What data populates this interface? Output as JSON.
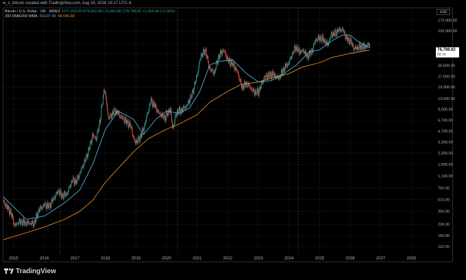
{
  "header": {
    "author_line": "w_s_bitcoin created with TradingView.com, Aug 24, 2026 19:17 UTC-4"
  },
  "legend": {
    "symbol_line": "Bitcoin / U.S. Dollar · 1W · INDEX",
    "ohlc": "O77,253.09  H79,993.99  L76,664.85  C78,788.82  +1,054.49 (+1.36%)",
    "ma_label": "200 DMA/200 WMA",
    "ma_value_1": "69,037.46",
    "ma_value_2": "64,590.68"
  },
  "currency": "USD",
  "price_tag": {
    "value": "78,788.82",
    "time": "8d 1h"
  },
  "footer": {
    "brand": "TradingView"
  },
  "colors": {
    "candle_up": "#26a69a",
    "candle_down": "#ef5350",
    "ma_blue": "#4fb8e8",
    "ma_orange": "#f0901e",
    "grid": "#1a1a1a",
    "divider": "#555555"
  },
  "chart_data": {
    "type": "line",
    "title": "Bitcoin / U.S. Dollar",
    "scale": "log",
    "ylim": [
      90,
      250000
    ],
    "xlim": [
      "2014-09-01",
      "2028-09-01"
    ],
    "y_ticks": [
      "170,000.00",
      "120,000.00",
      "57,000.00",
      "39,500.00",
      "27,500.00",
      "19,500.00",
      "13,500.00",
      "9,500.00",
      "6,700.00",
      "4,700.00",
      "3,300.00",
      "2,300.00",
      "1,600.00",
      "1,100.00",
      "750.00",
      "510.00",
      "350.00",
      "230.00",
      "160.00",
      "112.00"
    ],
    "y_tick_values": [
      170000,
      120000,
      57000,
      39500,
      27500,
      19500,
      13500,
      9500,
      6700,
      4700,
      3300,
      2300,
      1600,
      1100,
      750,
      510,
      350,
      230,
      160,
      112
    ],
    "x_ticks": [
      "2015",
      "2016",
      "2017",
      "2018",
      "2019",
      "2020",
      "2021",
      "2022",
      "2023",
      "2024",
      "2025",
      "2026",
      "2027",
      "2028"
    ],
    "x_tick_dates": [
      "2015-01-01",
      "2016-01-01",
      "2017-01-01",
      "2018-01-01",
      "2019-01-01",
      "2020-01-01",
      "2021-01-01",
      "2022-01-01",
      "2023-01-01",
      "2024-01-01",
      "2025-01-01",
      "2026-01-01",
      "2027-01-01",
      "2028-01-01"
    ],
    "halving_dates": [
      "2016-07-09",
      "2020-05-11",
      "2024-04-20"
    ],
    "last_price": 78788.82,
    "series": [
      {
        "name": "Bitcoin / U.S. Dollar",
        "kind": "candles",
        "x": [
          "2014-09-01",
          "2014-12-01",
          "2015-01-15",
          "2015-03-01",
          "2015-06-01",
          "2015-09-01",
          "2015-11-01",
          "2016-01-01",
          "2016-03-01",
          "2016-06-15",
          "2016-08-01",
          "2016-10-01",
          "2016-12-01",
          "2017-01-15",
          "2017-03-01",
          "2017-05-01",
          "2017-06-15",
          "2017-08-01",
          "2017-09-15",
          "2017-11-01",
          "2017-12-17",
          "2018-01-15",
          "2018-02-06",
          "2018-03-15",
          "2018-05-01",
          "2018-07-01",
          "2018-09-01",
          "2018-11-01",
          "2018-12-15",
          "2019-02-01",
          "2019-04-01",
          "2019-06-26",
          "2019-08-15",
          "2019-10-01",
          "2019-12-15",
          "2020-02-15",
          "2020-03-13",
          "2020-05-01",
          "2020-07-01",
          "2020-09-01",
          "2020-11-01",
          "2021-01-01",
          "2021-02-15",
          "2021-04-14",
          "2021-05-20",
          "2021-07-20",
          "2021-09-07",
          "2021-11-10",
          "2022-01-01",
          "2022-03-01",
          "2022-05-01",
          "2022-06-18",
          "2022-08-15",
          "2022-11-10",
          "2023-01-01",
          "2023-03-15",
          "2023-06-15",
          "2023-09-01",
          "2023-11-01",
          "2024-01-01",
          "2024-03-14",
          "2024-05-01",
          "2024-07-01",
          "2024-08-05",
          "2024-10-01",
          "2024-11-15",
          "2025-01-01",
          "2025-02-15",
          "2025-04-07",
          "2025-05-22",
          "2025-07-01",
          "2025-08-14",
          "2025-10-06",
          "2025-11-20",
          "2026-01-01",
          "2026-02-15",
          "2026-04-01",
          "2026-05-15",
          "2026-06-20",
          "2026-07-15",
          "2026-08-24"
        ],
        "close": [
          480,
          330,
          215,
          250,
          240,
          235,
          370,
          430,
          415,
          680,
          575,
          620,
          960,
          900,
          1200,
          1800,
          2500,
          4100,
          3700,
          7000,
          19000,
          11500,
          7000,
          8000,
          9000,
          7500,
          6500,
          5500,
          3300,
          3500,
          5000,
          12500,
          10500,
          8300,
          7200,
          9800,
          5000,
          8800,
          9200,
          10800,
          15500,
          29000,
          55000,
          63000,
          37000,
          30000,
          50000,
          66000,
          47000,
          41000,
          31000,
          19000,
          22000,
          16500,
          16600,
          27000,
          30000,
          26000,
          35000,
          43000,
          71000,
          62000,
          62500,
          52000,
          62000,
          91000,
          95000,
          92000,
          76000,
          108000,
          108000,
          123000,
          124000,
          92000,
          88000,
          68000,
          70000,
          73000,
          71000,
          74000,
          78788.82
        ]
      },
      {
        "name": "200 DMA",
        "x": [
          "2014-09-01",
          "2015-06-01",
          "2016-01-01",
          "2016-09-01",
          "2017-03-01",
          "2017-08-01",
          "2018-01-01",
          "2018-06-01",
          "2018-12-01",
          "2019-04-01",
          "2019-09-01",
          "2020-01-01",
          "2020-06-01",
          "2020-10-01",
          "2021-02-01",
          "2021-06-01",
          "2021-10-01",
          "2022-03-01",
          "2022-08-01",
          "2023-01-01",
          "2023-06-01",
          "2023-11-01",
          "2024-04-01",
          "2024-09-01",
          "2025-01-01",
          "2025-06-01",
          "2025-10-01",
          "2026-01-01",
          "2026-04-01",
          "2026-08-24"
        ],
        "values": [
          560,
          270,
          300,
          460,
          700,
          1600,
          5000,
          9000,
          6900,
          4200,
          7000,
          9000,
          8300,
          9900,
          17000,
          40000,
          45000,
          47000,
          31000,
          23000,
          24000,
          30000,
          40000,
          61000,
          65000,
          88000,
          105000,
          105000,
          86000,
          69037.46
        ]
      },
      {
        "name": "200 WMA",
        "x": [
          "2014-09-01",
          "2015-06-01",
          "2016-01-01",
          "2016-09-01",
          "2017-03-01",
          "2017-08-01",
          "2018-01-01",
          "2018-06-01",
          "2018-12-01",
          "2019-06-01",
          "2020-01-01",
          "2020-06-01",
          "2021-01-01",
          "2021-06-01",
          "2022-01-01",
          "2022-06-01",
          "2023-01-01",
          "2023-06-01",
          "2024-01-01",
          "2024-06-01",
          "2025-01-01",
          "2025-06-01",
          "2026-01-01",
          "2026-08-24"
        ],
        "values": [
          140,
          175,
          210,
          270,
          350,
          500,
          900,
          1400,
          2400,
          3700,
          5000,
          5900,
          8000,
          12000,
          17000,
          21000,
          23000,
          26000,
          30000,
          37000,
          43000,
          51000,
          58000,
          64590.68
        ]
      }
    ]
  }
}
